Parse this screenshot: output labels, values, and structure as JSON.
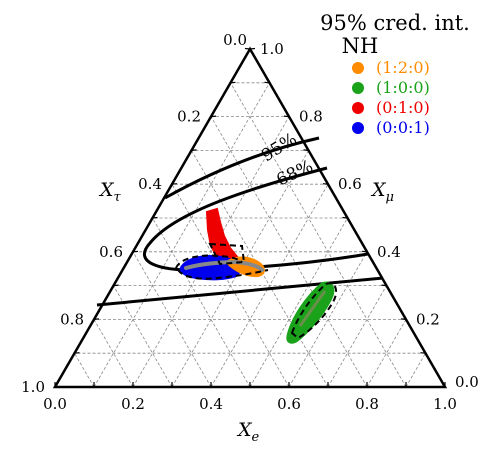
{
  "chart_data": {
    "type": "scatter",
    "subtype": "ternary",
    "title": "95% cred. int.",
    "axes": {
      "bottom": {
        "symbol": "X",
        "subscript": "e",
        "ticks": [
          "0.0",
          "0.2",
          "0.4",
          "0.6",
          "0.8",
          "1.0"
        ]
      },
      "left": {
        "symbol": "X",
        "subscript": "τ",
        "ticks": [
          "0.0",
          "0.2",
          "0.4",
          "0.6",
          "0.8",
          "1.0"
        ]
      },
      "right": {
        "symbol": "X",
        "subscript": "μ",
        "ticks": [
          "1.0",
          "0.8",
          "0.6",
          "0.4",
          "0.2",
          "0.0"
        ]
      }
    },
    "grid": true,
    "legend": {
      "title": "NH",
      "position": "top-right",
      "entries": [
        {
          "label": "(1:2:0)",
          "color": "#ff8c00"
        },
        {
          "label": "(1:0:0)",
          "color": "#1aa31a"
        },
        {
          "label": "(0:1:0)",
          "color": "#ee0000"
        },
        {
          "label": "(0:0:1)",
          "color": "#0000ee"
        }
      ]
    },
    "contour_labels": [
      "95%",
      "68%"
    ],
    "regions": [
      {
        "series": "(1:0:0)",
        "color": "#1aa31a",
        "center": {
          "e": 0.7,
          "tau": 0.08,
          "mu": 0.22
        }
      },
      {
        "series": "(0:1:0)",
        "color": "#ee0000",
        "center": {
          "e": 0.4,
          "tau": 0.37,
          "mu": 0.23
        }
      },
      {
        "series": "(0:0:1)",
        "color": "#0000ee",
        "center": {
          "e": 0.42,
          "tau": 0.33,
          "mu": 0.25
        }
      },
      {
        "series": "(1:2:0)",
        "color": "#ff8c00",
        "center": {
          "e": 0.52,
          "tau": 0.29,
          "mu": 0.19
        }
      }
    ]
  }
}
